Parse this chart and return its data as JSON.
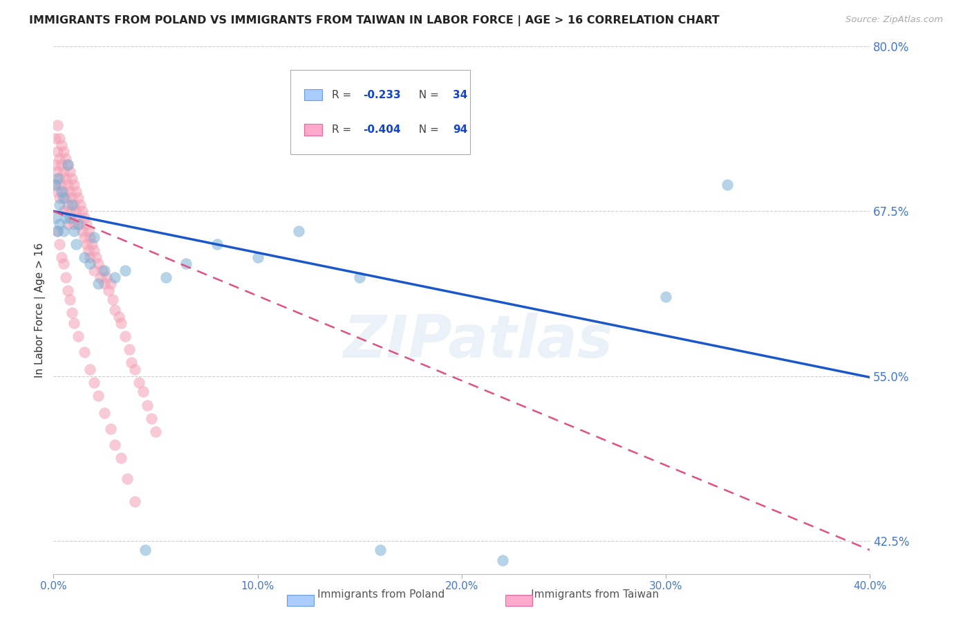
{
  "title": "IMMIGRANTS FROM POLAND VS IMMIGRANTS FROM TAIWAN IN LABOR FORCE | AGE > 16 CORRELATION CHART",
  "source": "Source: ZipAtlas.com",
  "ylabel": "In Labor Force | Age > 16",
  "xmin": 0.0,
  "xmax": 0.4,
  "ymin": 0.4,
  "ymax": 0.8,
  "yticks": [
    0.425,
    0.55,
    0.675,
    0.8
  ],
  "ytick_labels": [
    "42.5%",
    "55.0%",
    "67.5%",
    "80.0%"
  ],
  "xticks": [
    0.0,
    0.1,
    0.2,
    0.3,
    0.4
  ],
  "xtick_labels": [
    "0.0%",
    "10.0%",
    "20.0%",
    "30.0%",
    "40.0%"
  ],
  "poland_color": "#7bafd4",
  "taiwan_color": "#f4a0b5",
  "poland_line_color": "#1a56cc",
  "taiwan_line_color": "#e05080",
  "poland_R": -0.233,
  "poland_N": 34,
  "taiwan_R": -0.404,
  "taiwan_N": 94,
  "watermark": "ZIPatlas",
  "background_color": "#ffffff",
  "axis_label_color": "#4477cc",
  "grid_color": "#cccccc",
  "poland_line_x0": 0.0,
  "poland_line_y0": 0.675,
  "poland_line_x1": 0.4,
  "poland_line_y1": 0.549,
  "taiwan_line_x0": 0.0,
  "taiwan_line_y0": 0.675,
  "taiwan_line_x1": 0.4,
  "taiwan_line_y1": 0.418,
  "poland_scatter_x": [
    0.001,
    0.001,
    0.002,
    0.002,
    0.003,
    0.003,
    0.004,
    0.005,
    0.005,
    0.006,
    0.007,
    0.008,
    0.009,
    0.01,
    0.011,
    0.012,
    0.015,
    0.018,
    0.02,
    0.022,
    0.025,
    0.03,
    0.035,
    0.045,
    0.055,
    0.065,
    0.08,
    0.1,
    0.12,
    0.15,
    0.16,
    0.22,
    0.3,
    0.33
  ],
  "poland_scatter_y": [
    0.695,
    0.67,
    0.7,
    0.66,
    0.68,
    0.665,
    0.69,
    0.685,
    0.66,
    0.67,
    0.71,
    0.67,
    0.68,
    0.66,
    0.65,
    0.665,
    0.64,
    0.635,
    0.655,
    0.62,
    0.63,
    0.625,
    0.63,
    0.418,
    0.625,
    0.635,
    0.65,
    0.64,
    0.66,
    0.625,
    0.418,
    0.41,
    0.61,
    0.695
  ],
  "taiwan_scatter_x": [
    0.001,
    0.001,
    0.001,
    0.002,
    0.002,
    0.002,
    0.002,
    0.003,
    0.003,
    0.003,
    0.003,
    0.004,
    0.004,
    0.004,
    0.005,
    0.005,
    0.005,
    0.005,
    0.006,
    0.006,
    0.006,
    0.007,
    0.007,
    0.007,
    0.007,
    0.008,
    0.008,
    0.008,
    0.009,
    0.009,
    0.009,
    0.01,
    0.01,
    0.01,
    0.011,
    0.011,
    0.012,
    0.012,
    0.013,
    0.013,
    0.014,
    0.014,
    0.015,
    0.015,
    0.016,
    0.016,
    0.017,
    0.017,
    0.018,
    0.018,
    0.019,
    0.02,
    0.02,
    0.021,
    0.022,
    0.023,
    0.024,
    0.025,
    0.026,
    0.027,
    0.028,
    0.029,
    0.03,
    0.032,
    0.033,
    0.035,
    0.037,
    0.038,
    0.04,
    0.042,
    0.044,
    0.046,
    0.048,
    0.05,
    0.002,
    0.003,
    0.004,
    0.005,
    0.006,
    0.007,
    0.008,
    0.009,
    0.01,
    0.012,
    0.015,
    0.018,
    0.02,
    0.022,
    0.025,
    0.028,
    0.03,
    0.033,
    0.036,
    0.04
  ],
  "taiwan_scatter_y": [
    0.73,
    0.71,
    0.695,
    0.74,
    0.72,
    0.705,
    0.69,
    0.73,
    0.715,
    0.7,
    0.685,
    0.725,
    0.71,
    0.695,
    0.72,
    0.705,
    0.69,
    0.675,
    0.715,
    0.7,
    0.685,
    0.71,
    0.695,
    0.68,
    0.665,
    0.705,
    0.69,
    0.675,
    0.7,
    0.685,
    0.67,
    0.695,
    0.68,
    0.665,
    0.69,
    0.675,
    0.685,
    0.67,
    0.68,
    0.665,
    0.675,
    0.66,
    0.67,
    0.655,
    0.665,
    0.65,
    0.66,
    0.645,
    0.655,
    0.64,
    0.65,
    0.645,
    0.63,
    0.64,
    0.635,
    0.625,
    0.63,
    0.62,
    0.625,
    0.615,
    0.62,
    0.608,
    0.6,
    0.595,
    0.59,
    0.58,
    0.57,
    0.56,
    0.555,
    0.545,
    0.538,
    0.528,
    0.518,
    0.508,
    0.66,
    0.65,
    0.64,
    0.635,
    0.625,
    0.615,
    0.608,
    0.598,
    0.59,
    0.58,
    0.568,
    0.555,
    0.545,
    0.535,
    0.522,
    0.51,
    0.498,
    0.488,
    0.472,
    0.455
  ]
}
